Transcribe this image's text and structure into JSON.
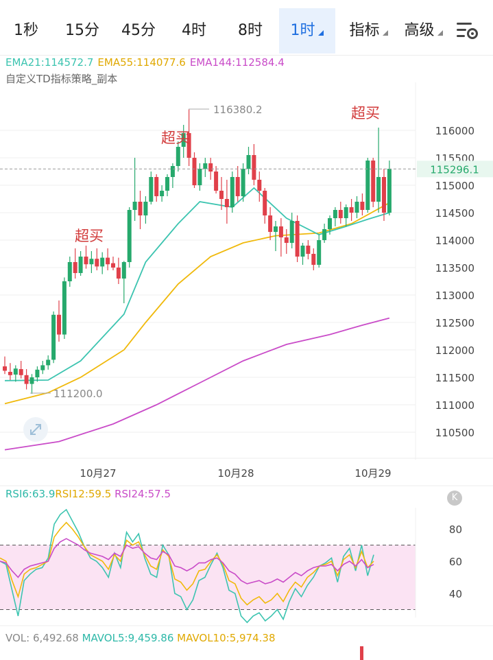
{
  "tabs": [
    {
      "label": "1秒",
      "active": false
    },
    {
      "label": "15分",
      "active": false
    },
    {
      "label": "45分",
      "active": false
    },
    {
      "label": "4时",
      "active": false
    },
    {
      "label": "8时",
      "active": false
    },
    {
      "label": "1时",
      "active": true,
      "dropdown": true
    },
    {
      "label": "指标",
      "active": false,
      "dropdown": true
    },
    {
      "label": "高级",
      "active": false,
      "dropdown": true
    }
  ],
  "icons": {
    "settings": "settings-sliders-icon",
    "expand": "expand-arrows-icon",
    "rsi_badge": "k-badge-icon"
  },
  "colors": {
    "up": "#26a96c",
    "down": "#e0404a",
    "ema21": "#3cc4b0",
    "ema55": "#f0b90b",
    "ema144": "#c94bc8",
    "overbought_band": "#fbe3f3"
  },
  "indicators": {
    "ema21_label": "EMA21:114572.7",
    "ema55_label": "EMA55:114077.6",
    "ema144_label": "EMA144:112584.4",
    "strategy_label": "自定义TD指标策略_副本"
  },
  "rsi": {
    "rsi6_label": "RSI6:63.9",
    "rsi12_label": "RSI12:59.5",
    "rsi24_label": "RSI24:57.5",
    "badge": "K"
  },
  "vol": {
    "vol_label": "VOL: 6,492.68",
    "mavol5_label": "MAVOL5:9,459.86",
    "mavol10_label": "MAVOL10:5,974.38"
  },
  "chart_data": [
    {
      "type": "candlestick",
      "y_ticks": [
        116000,
        115500,
        115000,
        114500,
        114000,
        113500,
        113000,
        112500,
        112000,
        111500,
        111000,
        110500
      ],
      "ylim": [
        110200,
        116700
      ],
      "x_ticks": [
        "10月27",
        "10月28",
        "10月29"
      ],
      "current_price": "115296.1",
      "high_label": "116380.2",
      "low_label": "111200.0",
      "signal_label": "超买",
      "candles": [
        [
          111700,
          111880,
          111560,
          111620
        ],
        [
          111600,
          111760,
          111450,
          111540
        ],
        [
          111550,
          111720,
          111420,
          111660
        ],
        [
          111650,
          111800,
          111480,
          111540
        ],
        [
          111540,
          111650,
          111280,
          111380
        ],
        [
          111380,
          111560,
          111200,
          111500
        ],
        [
          111500,
          111700,
          111420,
          111640
        ],
        [
          111630,
          111800,
          111560,
          111720
        ],
        [
          111720,
          111900,
          111640,
          111820
        ],
        [
          111820,
          112700,
          111760,
          112640
        ],
        [
          112640,
          112900,
          112150,
          112280
        ],
        [
          112280,
          113320,
          112200,
          113250
        ],
        [
          113250,
          113700,
          113150,
          113600
        ],
        [
          113600,
          113850,
          113300,
          113400
        ],
        [
          113400,
          113800,
          113350,
          113700
        ],
        [
          113700,
          113900,
          113480,
          113560
        ],
        [
          113560,
          113800,
          113400,
          113660
        ],
        [
          113660,
          113850,
          113450,
          113520
        ],
        [
          113520,
          113780,
          113380,
          113680
        ],
        [
          113680,
          113850,
          113450,
          113560
        ],
        [
          113580,
          113700,
          113450,
          113500
        ],
        [
          113500,
          113680,
          113200,
          113300
        ],
        [
          113300,
          113620,
          112850,
          113600
        ],
        [
          113600,
          114600,
          113500,
          114550
        ],
        [
          114550,
          115500,
          114350,
          114700
        ],
        [
          114700,
          114900,
          114200,
          114450
        ],
        [
          114450,
          114800,
          114300,
          114700
        ],
        [
          114700,
          115250,
          114650,
          115150
        ],
        [
          115150,
          115200,
          114700,
          114800
        ],
        [
          114800,
          115000,
          114700,
          114900
        ],
        [
          114900,
          115200,
          114800,
          115150
        ],
        [
          115150,
          115400,
          114950,
          115350
        ],
        [
          115350,
          115800,
          115250,
          115700
        ],
        [
          115700,
          116100,
          115500,
          115950
        ],
        [
          115950,
          116380,
          115350,
          115500
        ],
        [
          115500,
          115600,
          114950,
          115000
        ],
        [
          115000,
          115400,
          114900,
          115300
        ],
        [
          115300,
          115500,
          115150,
          115400
        ],
        [
          115400,
          115500,
          115100,
          115250
        ],
        [
          115250,
          115350,
          114850,
          114900
        ],
        [
          114900,
          115150,
          114550,
          114750
        ],
        [
          114750,
          115100,
          114300,
          114600
        ],
        [
          114600,
          115250,
          114500,
          115150
        ],
        [
          115150,
          115350,
          114700,
          114800
        ],
        [
          114800,
          115400,
          114700,
          115300
        ],
        [
          115300,
          115700,
          115200,
          115550
        ],
        [
          115550,
          115750,
          115000,
          115100
        ],
        [
          115100,
          115250,
          114700,
          114900
        ],
        [
          114900,
          114950,
          114300,
          114450
        ],
        [
          114450,
          114600,
          114000,
          114150
        ],
        [
          114150,
          114350,
          113800,
          114250
        ],
        [
          114250,
          114400,
          113700,
          114050
        ],
        [
          114050,
          114200,
          113750,
          113950
        ],
        [
          113950,
          114500,
          113850,
          114350
        ],
        [
          114350,
          114450,
          113600,
          113700
        ],
        [
          113700,
          113950,
          113550,
          113900
        ],
        [
          113900,
          114000,
          113650,
          113750
        ],
        [
          113750,
          113850,
          113450,
          113550
        ],
        [
          113550,
          114100,
          113500,
          114000
        ],
        [
          114000,
          114300,
          113950,
          114200
        ],
        [
          114200,
          114450,
          114100,
          114400
        ],
        [
          114400,
          114600,
          114250,
          114550
        ],
        [
          114550,
          114700,
          114300,
          114400
        ],
        [
          114400,
          114650,
          114250,
          114600
        ],
        [
          114600,
          114750,
          114350,
          114500
        ],
        [
          114500,
          114800,
          114400,
          114700
        ],
        [
          114700,
          114850,
          114450,
          114550
        ],
        [
          114550,
          115500,
          114500,
          115450
        ],
        [
          115450,
          115500,
          114600,
          114700
        ],
        [
          114700,
          116050,
          114500,
          115150
        ],
        [
          115150,
          115300,
          114350,
          114500
        ],
        [
          114500,
          115450,
          114450,
          115300
        ]
      ],
      "ema21": [
        [
          0,
          111440
        ],
        [
          8,
          111450
        ],
        [
          14,
          111800
        ],
        [
          22,
          112650
        ],
        [
          26,
          113600
        ],
        [
          32,
          114300
        ],
        [
          36,
          114700
        ],
        [
          42,
          114600
        ],
        [
          46,
          114950
        ],
        [
          52,
          114400
        ],
        [
          58,
          114100
        ],
        [
          63,
          114250
        ],
        [
          67,
          114380
        ],
        [
          71,
          114500
        ]
      ],
      "ema55": [
        [
          0,
          111020
        ],
        [
          8,
          111220
        ],
        [
          14,
          111500
        ],
        [
          22,
          112000
        ],
        [
          26,
          112500
        ],
        [
          32,
          113200
        ],
        [
          38,
          113700
        ],
        [
          44,
          113950
        ],
        [
          50,
          114080
        ],
        [
          58,
          114130
        ],
        [
          64,
          114300
        ],
        [
          71,
          114680
        ]
      ],
      "ema144": [
        [
          0,
          110180
        ],
        [
          10,
          110330
        ],
        [
          20,
          110650
        ],
        [
          28,
          111000
        ],
        [
          36,
          111400
        ],
        [
          44,
          111800
        ],
        [
          52,
          112100
        ],
        [
          60,
          112280
        ],
        [
          66,
          112450
        ],
        [
          71,
          112580
        ]
      ]
    },
    {
      "type": "line",
      "name": "RSI",
      "y_ticks": [
        80,
        60,
        40
      ],
      "ylim": [
        20,
        95
      ],
      "band": [
        70,
        30
      ],
      "series": [
        {
          "name": "RSI6",
          "values": [
            60,
            58,
            42,
            26,
            48,
            52,
            55,
            56,
            62,
            83,
            89,
            92,
            85,
            78,
            69,
            62,
            60,
            56,
            50,
            65,
            56,
            78,
            72,
            77,
            62,
            52,
            50,
            70,
            64,
            40,
            38,
            30,
            36,
            48,
            50,
            58,
            65,
            56,
            42,
            40,
            26,
            22,
            26,
            28,
            23,
            26,
            30,
            24,
            35,
            43,
            38,
            45,
            50,
            57,
            59,
            62,
            47,
            63,
            68,
            54,
            70,
            51,
            64
          ]
        },
        {
          "name": "RSI12",
          "values": [
            62,
            60,
            48,
            38,
            52,
            55,
            56,
            58,
            60,
            75,
            80,
            84,
            80,
            75,
            69,
            64,
            62,
            60,
            55,
            64,
            60,
            73,
            70,
            72,
            64,
            57,
            55,
            67,
            63,
            49,
            47,
            42,
            46,
            54,
            55,
            60,
            64,
            58,
            48,
            46,
            37,
            33,
            36,
            38,
            34,
            36,
            40,
            35,
            42,
            47,
            44,
            50,
            53,
            57,
            58,
            60,
            51,
            61,
            64,
            56,
            66,
            56,
            60
          ]
        },
        {
          "name": "RSI24",
          "values": [
            60,
            59,
            54,
            50,
            55,
            57,
            58,
            59,
            60,
            68,
            72,
            74,
            72,
            70,
            67,
            65,
            64,
            63,
            61,
            65,
            63,
            70,
            68,
            69,
            65,
            62,
            61,
            66,
            64,
            57,
            56,
            54,
            56,
            59,
            59,
            61,
            62,
            59,
            54,
            52,
            48,
            46,
            47,
            48,
            46,
            47,
            49,
            47,
            50,
            53,
            51,
            54,
            56,
            57,
            57,
            58,
            54,
            58,
            60,
            57,
            61,
            56,
            58
          ]
        }
      ]
    }
  ]
}
